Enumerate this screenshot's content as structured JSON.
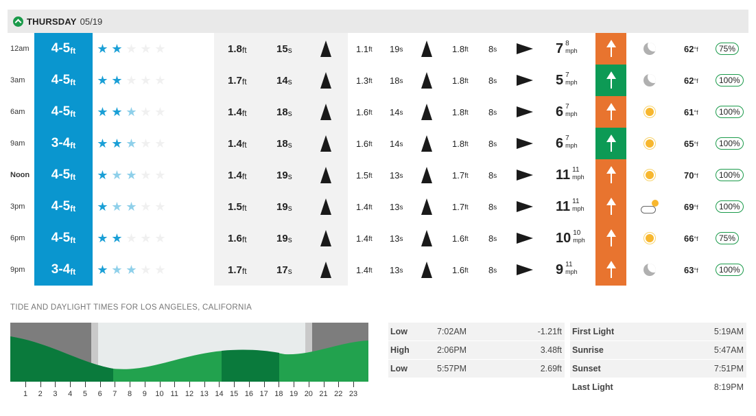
{
  "day": {
    "name": "THURSDAY",
    "date": "05/19"
  },
  "colors": {
    "surf_panel": "#0a96cf",
    "wind_onshore": "#e8742f",
    "wind_offshore": "#0d9a55",
    "star_on": "#1a9fd6",
    "star_mid": "#8fd0ea",
    "tide_dark": "#0a7a3c",
    "tide_light": "#22a24e"
  },
  "rows": [
    {
      "time": "12am",
      "bold": false,
      "surf": "4-5",
      "surf_unit": "ft",
      "rating_stars": 2,
      "rating_half": 0,
      "s1_h": "1.8",
      "s1_p": "15",
      "s2_h": "1.1",
      "s2_p": "19",
      "s3_h": "1.8",
      "s3_p": "8",
      "wind": "7",
      "gust": "8",
      "wind_unit": "mph",
      "wind_color": "orange",
      "weather": "moon-icon",
      "temp": "62",
      "temp_unit": "°f",
      "prob": "75%"
    },
    {
      "time": "3am",
      "bold": false,
      "surf": "4-5",
      "surf_unit": "ft",
      "rating_stars": 2,
      "rating_half": 0,
      "s1_h": "1.7",
      "s1_p": "14",
      "s2_h": "1.3",
      "s2_p": "18",
      "s3_h": "1.8",
      "s3_p": "8",
      "wind": "5",
      "gust": "7",
      "wind_unit": "mph",
      "wind_color": "green",
      "weather": "moon-icon",
      "temp": "62",
      "temp_unit": "°f",
      "prob": "100%"
    },
    {
      "time": "6am",
      "bold": false,
      "surf": "4-5",
      "surf_unit": "ft",
      "rating_stars": 2,
      "rating_half": 1,
      "s1_h": "1.4",
      "s1_p": "18",
      "s2_h": "1.6",
      "s2_p": "14",
      "s3_h": "1.8",
      "s3_p": "8",
      "wind": "6",
      "gust": "7",
      "wind_unit": "mph",
      "wind_color": "orange",
      "weather": "sun-icon",
      "temp": "61",
      "temp_unit": "°f",
      "prob": "100%"
    },
    {
      "time": "9am",
      "bold": false,
      "surf": "3-4",
      "surf_unit": "ft",
      "rating_stars": 2,
      "rating_half": 1,
      "s1_h": "1.4",
      "s1_p": "18",
      "s2_h": "1.6",
      "s2_p": "14",
      "s3_h": "1.8",
      "s3_p": "8",
      "wind": "6",
      "gust": "7",
      "wind_unit": "mph",
      "wind_color": "green",
      "weather": "sun-icon",
      "temp": "65",
      "temp_unit": "°f",
      "prob": "100%"
    },
    {
      "time": "Noon",
      "bold": true,
      "surf": "4-5",
      "surf_unit": "ft",
      "rating_stars": 1,
      "rating_half": 2,
      "s1_h": "1.4",
      "s1_p": "19",
      "s2_h": "1.5",
      "s2_p": "13",
      "s3_h": "1.7",
      "s3_p": "8",
      "wind": "11",
      "gust": "11",
      "wind_unit": "mph",
      "wind_color": "orange",
      "weather": "sun-icon",
      "temp": "70",
      "temp_unit": "°f",
      "prob": "100%"
    },
    {
      "time": "3pm",
      "bold": false,
      "surf": "4-5",
      "surf_unit": "ft",
      "rating_stars": 1,
      "rating_half": 2,
      "s1_h": "1.5",
      "s1_p": "19",
      "s2_h": "1.4",
      "s2_p": "13",
      "s3_h": "1.7",
      "s3_p": "8",
      "wind": "11",
      "gust": "11",
      "wind_unit": "mph",
      "wind_color": "orange",
      "weather": "partly-cloudy-icon",
      "temp": "69",
      "temp_unit": "°f",
      "prob": "100%"
    },
    {
      "time": "6pm",
      "bold": false,
      "surf": "4-5",
      "surf_unit": "ft",
      "rating_stars": 2,
      "rating_half": 0,
      "s1_h": "1.6",
      "s1_p": "19",
      "s2_h": "1.4",
      "s2_p": "13",
      "s3_h": "1.6",
      "s3_p": "8",
      "wind": "10",
      "gust": "10",
      "wind_unit": "mph",
      "wind_color": "orange",
      "weather": "sun-icon",
      "temp": "66",
      "temp_unit": "°f",
      "prob": "75%"
    },
    {
      "time": "9pm",
      "bold": false,
      "surf": "3-4",
      "surf_unit": "ft",
      "rating_stars": 1,
      "rating_half": 2,
      "s1_h": "1.7",
      "s1_p": "17",
      "s2_h": "1.4",
      "s2_p": "13",
      "s3_h": "1.6",
      "s3_p": "8",
      "wind": "9",
      "gust": "11",
      "wind_unit": "mph",
      "wind_color": "orange",
      "weather": "moon-icon",
      "temp": "63",
      "temp_unit": "°f",
      "prob": "100%"
    }
  ],
  "units": {
    "ft": "ft",
    "s": "s"
  },
  "tide": {
    "title": "TIDE AND DAYLIGHT TIMES FOR LOS ANGELES, CALIFORNIA",
    "hours": [
      "1",
      "2",
      "3",
      "4",
      "5",
      "6",
      "7",
      "8",
      "9",
      "10",
      "11",
      "12",
      "13",
      "14",
      "15",
      "16",
      "17",
      "18",
      "19",
      "20",
      "21",
      "22",
      "23"
    ],
    "events": [
      {
        "type": "Low",
        "time": "7:02AM",
        "height": "-1.21ft"
      },
      {
        "type": "High",
        "time": "2:06PM",
        "height": "3.48ft"
      },
      {
        "type": "Low",
        "time": "5:57PM",
        "height": "2.69ft"
      }
    ],
    "daylight": [
      {
        "label": "First Light",
        "time": "5:19AM"
      },
      {
        "label": "Sunrise",
        "time": "5:47AM"
      },
      {
        "label": "Sunset",
        "time": "7:51PM"
      },
      {
        "label": "Last Light",
        "time": "8:19PM"
      }
    ]
  }
}
